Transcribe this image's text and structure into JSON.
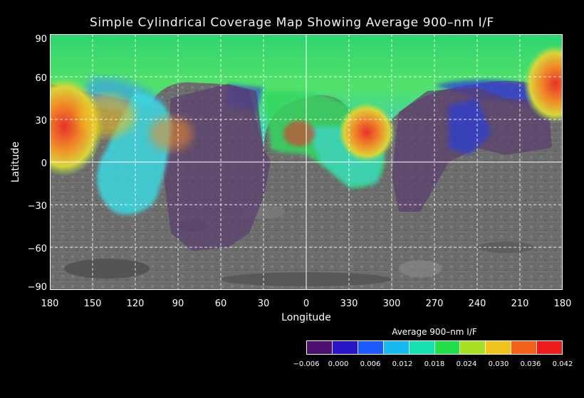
{
  "title": "Simple Cylindrical Coverage Map Showing Average 900–nm I/F",
  "xaxis": {
    "label": "Longitude",
    "ticks": [
      "180",
      "150",
      "120",
      "90",
      "60",
      "30",
      "0",
      "330",
      "300",
      "270",
      "240",
      "210",
      "180"
    ]
  },
  "yaxis": {
    "label": "Latitude",
    "ticks": [
      "90",
      "60",
      "30",
      "0",
      "−30",
      "−60",
      "−90"
    ]
  },
  "colorbar": {
    "title": "Average 900–nm I/F",
    "ticks": [
      "−0.006",
      "0.000",
      "0.006",
      "0.012",
      "0.018",
      "0.024",
      "0.030",
      "0.036",
      "0.042"
    ],
    "colors": [
      "#4b0f6e",
      "#2a14c8",
      "#1a5cff",
      "#18b8f0",
      "#14e0b0",
      "#22e04a",
      "#a8e026",
      "#f0c21c",
      "#f0621a",
      "#ee1a1a"
    ]
  },
  "map": {
    "projection": "simple cylindrical",
    "lon_range": [
      180,
      -180
    ],
    "lat_range": [
      90,
      -90
    ],
    "grid": true,
    "colors": {
      "surface": "#6e6e6e",
      "no_data_overlay": "#5a3d6e",
      "cyan": "#3cd8e0",
      "green": "#34d860",
      "blue": "#2c3ed8",
      "orange": "#f08a28",
      "red": "#e8322a"
    }
  }
}
